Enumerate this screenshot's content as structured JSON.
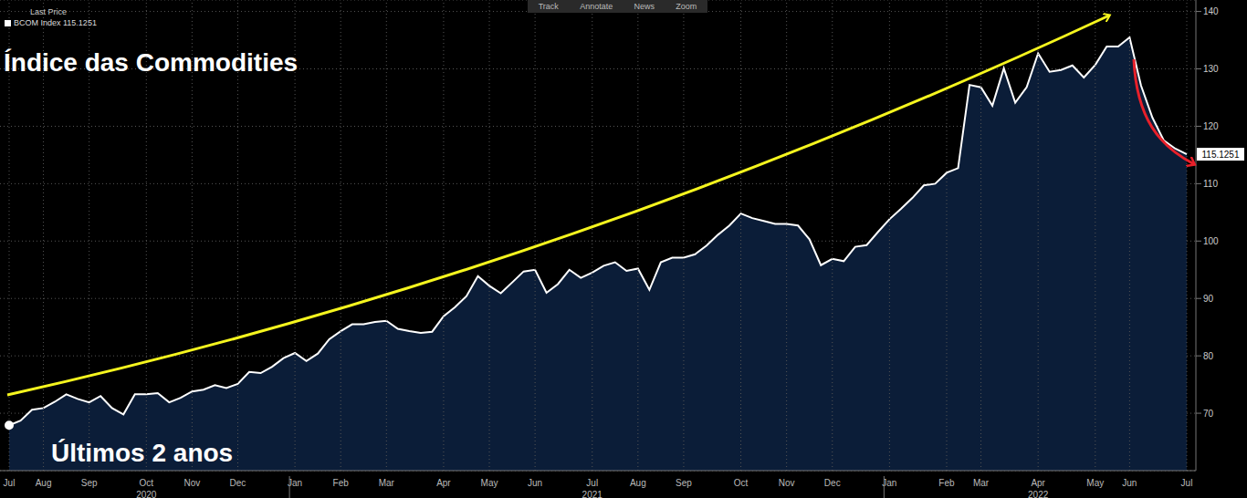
{
  "chart_data": {
    "type": "area",
    "title": "Índice das Commodities",
    "subtitle": "Últimos 2 anos",
    "legend_title": "Last Price",
    "toolbar": [
      "Track",
      "Annotate",
      "News",
      "Zoom"
    ],
    "last_value_label": "115.1251",
    "categories": [
      "Jul",
      null,
      null,
      "Aug",
      null,
      null,
      null,
      "Sep",
      null,
      null,
      null,
      null,
      "Oct",
      null,
      null,
      null,
      "Nov",
      null,
      null,
      null,
      "Dec",
      null,
      null,
      null,
      null,
      "Jan",
      null,
      null,
      null,
      "Feb",
      null,
      null,
      null,
      "Mar",
      null,
      null,
      null,
      null,
      "Apr",
      null,
      null,
      null,
      "May",
      null,
      null,
      null,
      "Jun",
      null,
      null,
      null,
      null,
      "Jul",
      null,
      null,
      null,
      "Aug",
      null,
      null,
      null,
      "Sep",
      null,
      null,
      null,
      null,
      "Oct",
      null,
      null,
      null,
      "Nov",
      null,
      null,
      null,
      "Dec",
      null,
      null,
      null,
      null,
      "Jan",
      null,
      null,
      null,
      null,
      "Feb",
      null,
      null,
      "Mar",
      null,
      null,
      null,
      null,
      "Apr",
      null,
      null,
      null,
      null,
      "May",
      null,
      null,
      "Jun",
      null,
      null,
      null,
      null,
      "Jul"
    ],
    "year_groups": [
      {
        "label": "2020",
        "first": 0,
        "last": 24
      },
      {
        "label": "2021",
        "first": 25,
        "last": 76
      },
      {
        "label": "2022",
        "first": 77,
        "last": 103
      }
    ],
    "series": [
      {
        "name": "BCOM Index 115.1251",
        "color": "#ffffff",
        "values": [
          67.9,
          68.7,
          70.6,
          70.9,
          72.0,
          73.3,
          72.5,
          71.9,
          73.0,
          70.9,
          69.8,
          73.3,
          73.3,
          73.5,
          71.9,
          72.7,
          73.8,
          74.1,
          74.9,
          74.4,
          75.1,
          77.2,
          77.0,
          78.1,
          79.6,
          80.5,
          79.1,
          80.4,
          82.9,
          84.3,
          85.5,
          85.5,
          85.9,
          86.1,
          84.7,
          84.3,
          84.0,
          84.2,
          86.9,
          88.5,
          90.4,
          93.9,
          92.2,
          90.9,
          92.8,
          94.7,
          95.0,
          91.0,
          92.5,
          95.0,
          93.6,
          94.5,
          95.7,
          96.3,
          94.8,
          95.2,
          91.5,
          96.3,
          97.1,
          97.1,
          97.7,
          99.2,
          101.1,
          102.7,
          104.8,
          104.0,
          103.5,
          103.0,
          103.0,
          102.7,
          100.3,
          95.8,
          96.9,
          96.5,
          99.0,
          99.3,
          101.6,
          103.8,
          105.6,
          107.5,
          109.7,
          110.0,
          111.9,
          112.7,
          127.2,
          126.8,
          123.6,
          130.1,
          124.1,
          126.8,
          132.7,
          129.5,
          129.8,
          130.6,
          128.5,
          130.7,
          133.9,
          133.9,
          135.5,
          127.1,
          121.5,
          117.5,
          116.1,
          115.1251
        ]
      }
    ],
    "ylim": [
      60,
      142
    ],
    "yticks": [
      70,
      80,
      90,
      100,
      110,
      120,
      130,
      140
    ],
    "grid": true
  }
}
